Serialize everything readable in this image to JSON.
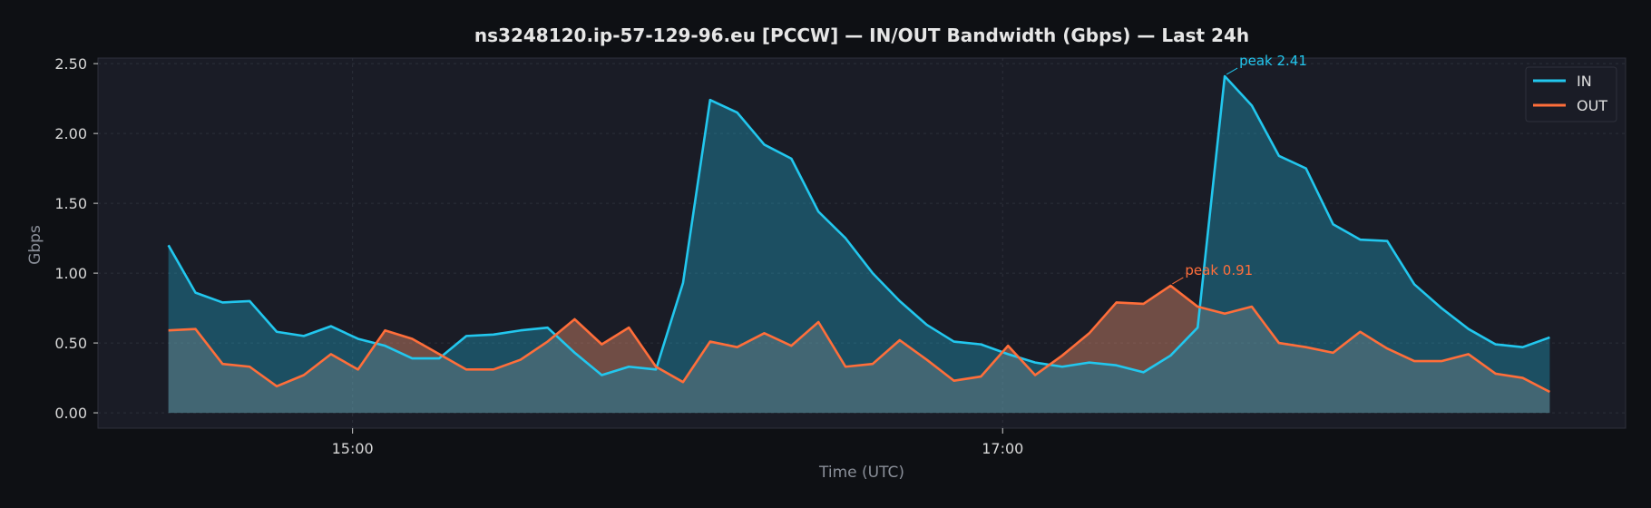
{
  "chart_data": {
    "type": "area",
    "title": "ns3248120.ip-57-129-96.eu [PCCW] — IN/OUT Bandwidth (Gbps) — Last 24h",
    "xlabel": "Time (UTC)",
    "ylabel": "Gbps",
    "ylim": [
      -0.11,
      2.54
    ],
    "yticks": [
      0,
      0.5,
      1.0,
      1.5,
      2.0,
      2.5
    ],
    "ytick_labels": [
      "0.00",
      "0.50",
      "1.00",
      "1.50",
      "2.00",
      "2.50"
    ],
    "xlim": [
      "14:13",
      "18:55"
    ],
    "x_ticks": [
      {
        "label": "15:00",
        "minute": 900
      },
      {
        "label": "17:00",
        "minute": 1020
      }
    ],
    "x_start_label": "14:26",
    "x_step_minutes": 5,
    "grid": true,
    "legend_position": "top-right",
    "colors": {
      "in": "#22c7ee",
      "out": "#ff6e3a",
      "base_fill": "#9a9a9a"
    },
    "series": [
      {
        "name": "IN",
        "color": "#22c7ee",
        "values": [
          1.2,
          0.86,
          0.79,
          0.8,
          0.58,
          0.55,
          0.62,
          0.53,
          0.48,
          0.39,
          0.39,
          0.55,
          0.56,
          0.59,
          0.61,
          0.43,
          0.27,
          0.33,
          0.31,
          0.93,
          2.24,
          2.15,
          1.92,
          1.82,
          1.44,
          1.25,
          1.0,
          0.8,
          0.63,
          0.51,
          0.49,
          0.42,
          0.36,
          0.33,
          0.36,
          0.34,
          0.29,
          0.41,
          0.61,
          2.41,
          2.2,
          1.84,
          1.75,
          1.35,
          1.24,
          1.23,
          0.92,
          0.75,
          0.6,
          0.49,
          0.47,
          0.54
        ]
      },
      {
        "name": "OUT",
        "color": "#ff6e3a",
        "values": [
          0.59,
          0.6,
          0.35,
          0.33,
          0.19,
          0.27,
          0.42,
          0.31,
          0.59,
          0.53,
          0.42,
          0.31,
          0.31,
          0.38,
          0.51,
          0.67,
          0.49,
          0.61,
          0.33,
          0.22,
          0.51,
          0.47,
          0.57,
          0.48,
          0.65,
          0.33,
          0.35,
          0.52,
          0.38,
          0.23,
          0.26,
          0.48,
          0.27,
          0.41,
          0.57,
          0.79,
          0.78,
          0.91,
          0.76,
          0.71,
          0.76,
          0.5,
          0.47,
          0.43,
          0.58,
          0.46,
          0.37,
          0.37,
          0.42,
          0.28,
          0.25,
          0.15
        ]
      }
    ],
    "annotations": [
      {
        "text": "peak 2.41",
        "series": "IN",
        "index": 39,
        "color": "#22c7ee"
      },
      {
        "text": "peak 0.91",
        "series": "OUT",
        "index": 37,
        "color": "#ff6e3a"
      }
    ]
  }
}
